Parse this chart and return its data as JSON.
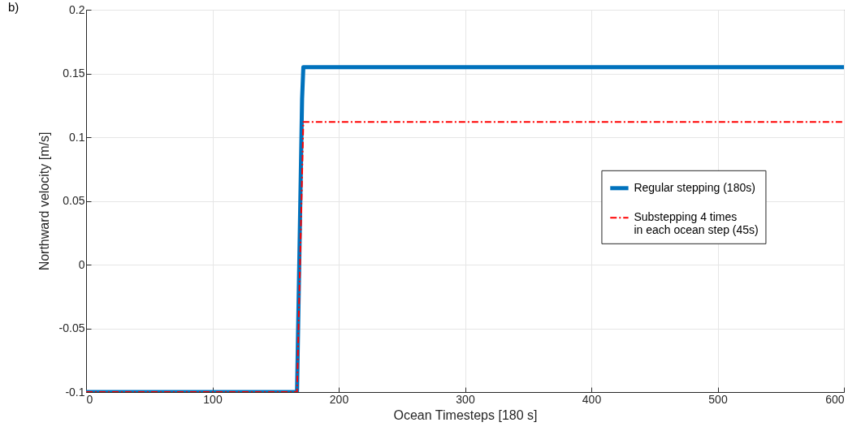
{
  "chart_data": {
    "type": "line",
    "title": "b)",
    "xlabel": "Ocean Timesteps [180 s]",
    "ylabel": "Northward velocity [m/s]",
    "xlim": [
      0,
      600
    ],
    "xticks": [
      0,
      100,
      200,
      300,
      400,
      500,
      600
    ],
    "ylim": [
      -0.1,
      0.2
    ],
    "yticks": [
      -0.1,
      -0.05,
      0,
      0.05,
      0.1,
      0.15,
      0.2
    ],
    "grid": true,
    "legend": "right",
    "series": [
      {
        "name": "Regular stepping (180s)",
        "color": "#0072bd",
        "line_style": "solid",
        "x": [
          0,
          167,
          171,
          172,
          600
        ],
        "values": [
          -0.1,
          -0.1,
          0.13,
          0.155,
          0.155
        ]
      },
      {
        "name": "Substepping 4 times\nin each ocean step (45s)",
        "color": "#ff0000",
        "line_style": "dashed",
        "x": [
          0,
          167,
          172,
          600
        ],
        "values": [
          -0.1,
          -0.1,
          0.112,
          0.112
        ]
      }
    ]
  }
}
